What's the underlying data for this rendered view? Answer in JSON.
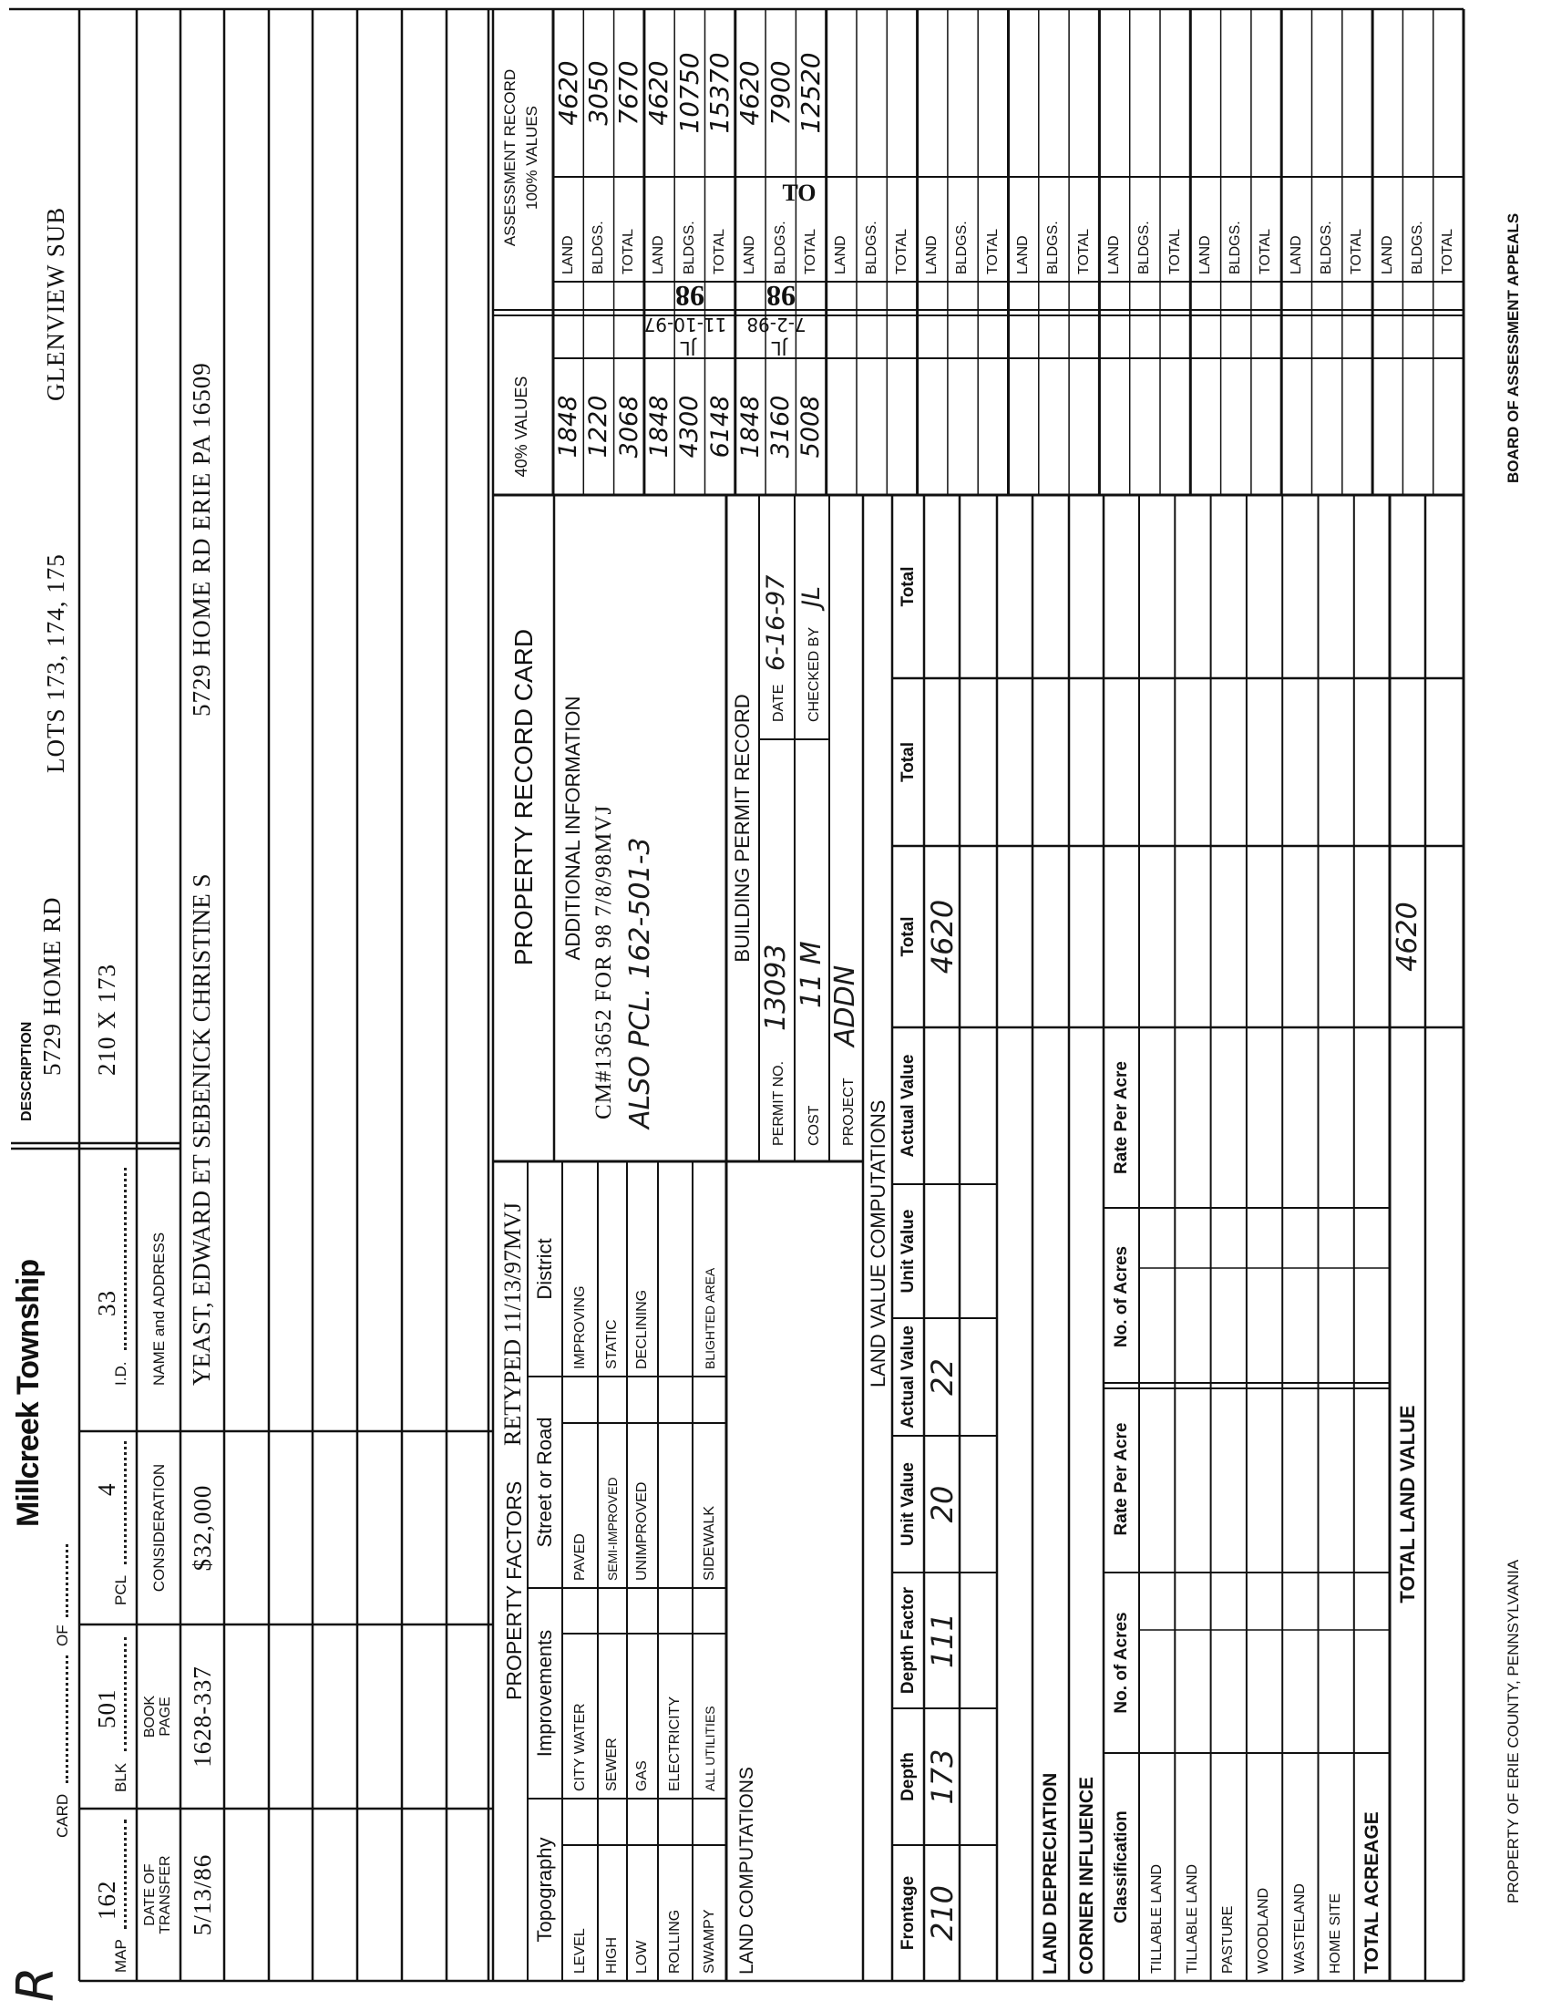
{
  "header": {
    "initial_mark": "R",
    "card_label": "CARD",
    "card_of": "OF",
    "township": "Millcreek Township",
    "description_label": "DESCRIPTION",
    "description_line1": "5729 HOME RD",
    "lots": "LOTS 173, 174, 175",
    "subdivision": "GLENVIEW SUB"
  },
  "parcel": {
    "map_label": "MAP",
    "map": "162",
    "blk_label": "BLK",
    "blk": "501",
    "pcl_label": "PCL",
    "pcl": "4",
    "id_label": "I.D.",
    "id": "33",
    "dimensions": "210 X 173"
  },
  "transfers": {
    "date_header": [
      "DATE OF",
      "TRANSFER"
    ],
    "book_header": [
      "BOOK",
      "PAGE"
    ],
    "consideration_header": "CONSIDERATION",
    "name_header": "NAME and ADDRESS",
    "rows": [
      {
        "date": "5/13/86",
        "book_page": "1628-337",
        "consideration": "$32,000",
        "name": "YEAST, EDWARD ET SEBENICK CHRISTINE S",
        "address": "5729 HOME RD  ERIE PA  16509"
      }
    ]
  },
  "property_factors": {
    "title": "PROPERTY FACTORS",
    "retyped": "RETYPED 11/13/97MVJ",
    "columns": [
      "Topography",
      "Improvements",
      "Street or Road",
      "District"
    ],
    "topography": [
      "LEVEL",
      "HIGH",
      "LOW",
      "ROLLING",
      "SWAMPY"
    ],
    "improvements": [
      "CITY WATER",
      "SEWER",
      "GAS",
      "ELECTRICITY",
      "ALL UTILITIES"
    ],
    "street": [
      "PAVED",
      "SEMI-IMPROVED",
      "UNIMPROVED",
      "",
      "SIDEWALK"
    ],
    "district": [
      "IMPROVING",
      "STATIC",
      "DECLINING",
      "",
      "BLIGHTED AREA"
    ]
  },
  "land_computations_label": "LAND COMPUTATIONS",
  "record_card": {
    "title": "PROPERTY RECORD CARD",
    "additional_info_title": "ADDITIONAL INFORMATION",
    "additional_info_typed": "CM#13652 FOR 98 7/8/98MVJ",
    "additional_info_handwritten": "ALSO PCL. 162-501-3"
  },
  "building_permit": {
    "title": "BUILDING PERMIT RECORD",
    "permit_no_label": "PERMIT NO.",
    "permit_no": "13093",
    "cost_label": "COST",
    "cost": "11 M",
    "project_label": "PROJECT",
    "project": "ADDN",
    "date_label": "DATE",
    "date": "6-16-97",
    "checked_by_label": "CHECKED BY",
    "checked_by": "JL"
  },
  "land_value": {
    "title": "LAND VALUE COMPUTATIONS",
    "columns": [
      "Frontage",
      "Depth",
      "Depth Factor",
      "Unit Value",
      "Actual Value",
      "Unit Value",
      "Actual Value",
      "Total",
      "Total",
      "Total"
    ],
    "rows": [
      [
        "210",
        "173",
        "111",
        "20",
        "22",
        "",
        "",
        "4620",
        "",
        ""
      ]
    ]
  },
  "acreage": {
    "land_depreciation": "LAND DEPRECIATION",
    "corner_influence": "CORNER INFLUENCE",
    "columns": [
      "Classification",
      "No. of Acres",
      "Rate Per Acre",
      "No. of Acres",
      "Rate Per Acre"
    ],
    "rows": [
      "TILLABLE LAND",
      "TILLABLE LAND",
      "PASTURE",
      "WOODLAND",
      "WASTELAND",
      "HOME SITE",
      "TOTAL ACREAGE"
    ],
    "total_land_value_label": "TOTAL LAND VALUE",
    "total_land_value": "4620"
  },
  "assessment": {
    "title": "ASSESSMENT RECORD",
    "subtitle": "100% VALUES",
    "pct40_title": "40% VALUES",
    "row_labels": [
      "LAND",
      "BLDGS.",
      "TOTAL"
    ],
    "sets": [
      {
        "full": [
          "4620",
          "3050",
          "7670"
        ],
        "pct40": [
          "1848",
          "1220",
          "3068"
        ]
      },
      {
        "full": [
          "4620",
          "10750",
          "15370"
        ],
        "pct40": [
          "1848",
          "4300",
          "6148"
        ],
        "year": "98",
        "date": "11-10-97",
        "initials": "JL"
      },
      {
        "full": [
          "4620",
          "7900",
          "12520"
        ],
        "pct40": [
          "1848",
          "3160",
          "5008"
        ],
        "year": "98",
        "date": "7-2-98",
        "initials": "JL",
        "stamp": "TO"
      },
      {
        "full": [
          "",
          "",
          ""
        ],
        "pct40": [
          "",
          "",
          ""
        ]
      },
      {
        "full": [
          "",
          "",
          ""
        ],
        "pct40": [
          "",
          "",
          ""
        ]
      },
      {
        "full": [
          "",
          "",
          ""
        ],
        "pct40": [
          "",
          "",
          ""
        ]
      },
      {
        "full": [
          "",
          "",
          ""
        ],
        "pct40": [
          "",
          "",
          ""
        ]
      },
      {
        "full": [
          "",
          "",
          ""
        ],
        "pct40": [
          "",
          "",
          ""
        ]
      },
      {
        "full": [
          "",
          "",
          ""
        ],
        "pct40": [
          "",
          "",
          ""
        ]
      },
      {
        "full": [
          "",
          "",
          ""
        ],
        "pct40": [
          "",
          "",
          ""
        ]
      }
    ]
  },
  "footer": {
    "left": "PROPERTY OF ERIE COUNTY, PENNSYLVANIA",
    "right": "BOARD OF ASSESSMENT APPEALS"
  }
}
